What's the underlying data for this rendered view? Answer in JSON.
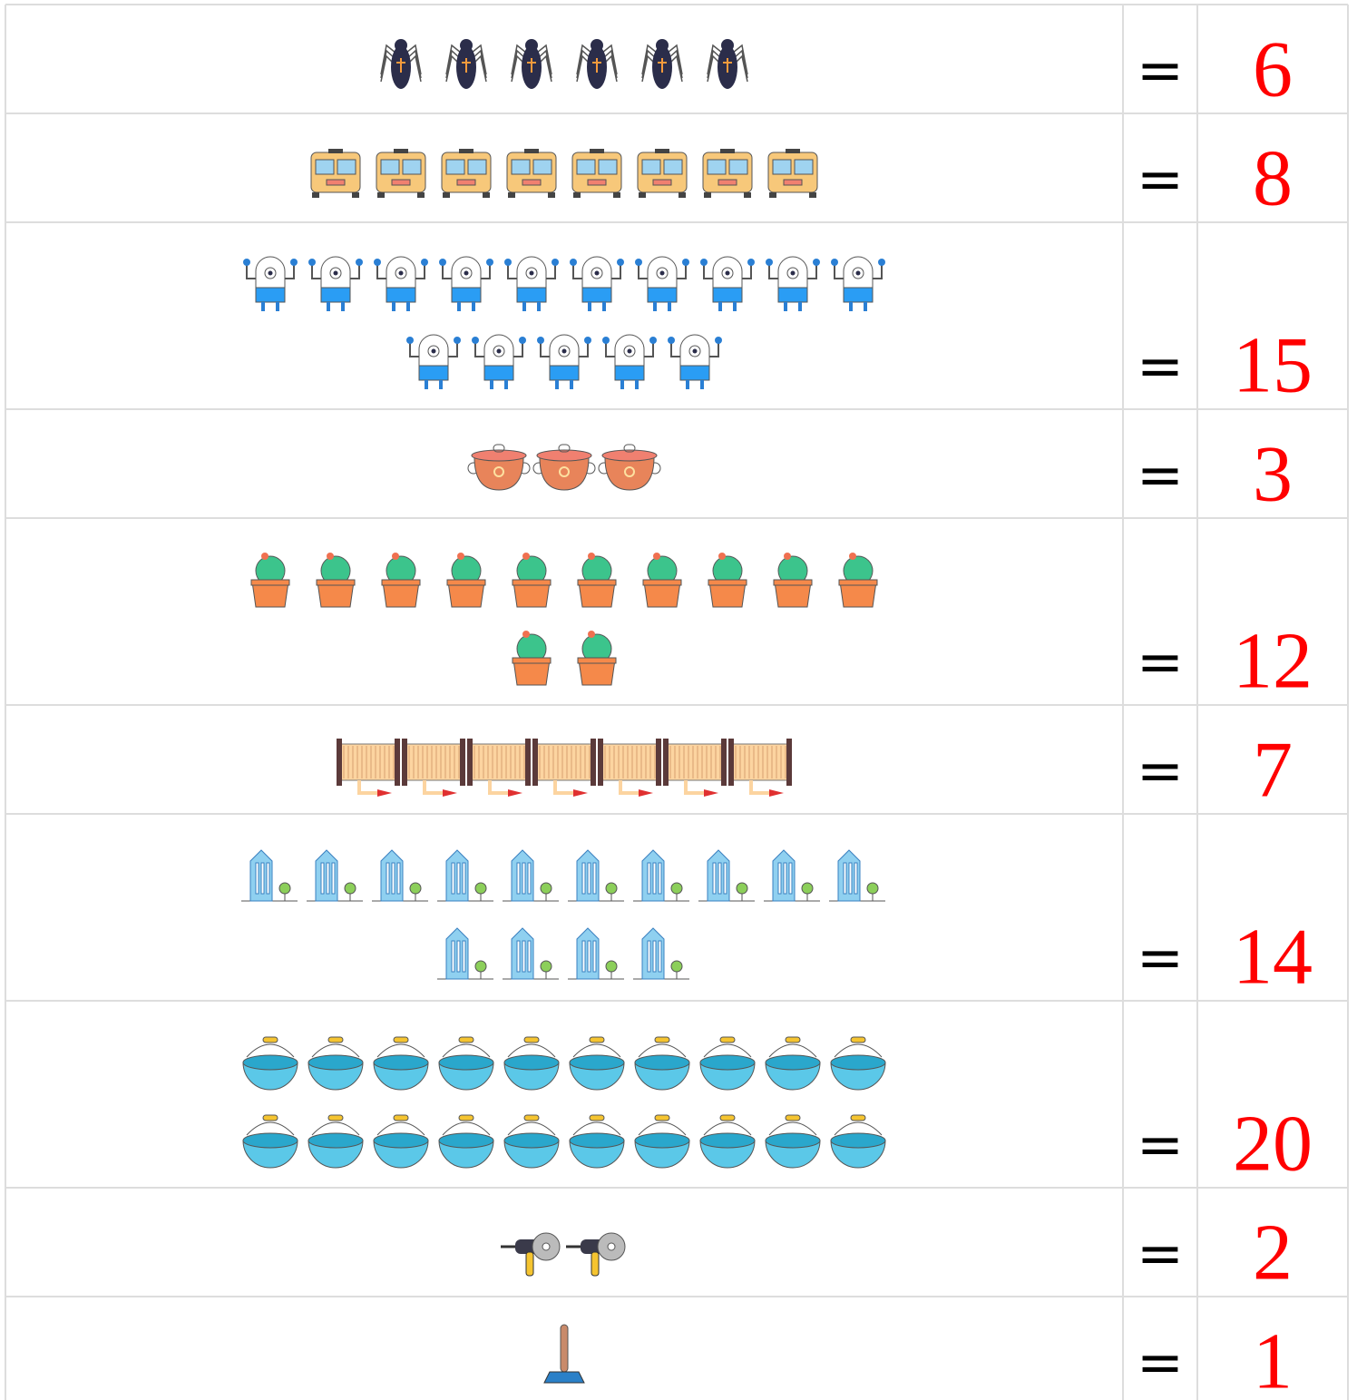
{
  "rows": [
    {
      "equals": "=",
      "count": 6
    },
    {
      "equals": "=",
      "count": 8
    },
    {
      "equals": "=",
      "count": 15
    },
    {
      "equals": "=",
      "count": 3
    },
    {
      "equals": "=",
      "count": 12
    },
    {
      "equals": "=",
      "count": 7
    },
    {
      "equals": "=",
      "count": 14
    },
    {
      "equals": "=",
      "count": 20
    },
    {
      "equals": "=",
      "count": 2
    },
    {
      "equals": "=",
      "count": 1
    }
  ]
}
